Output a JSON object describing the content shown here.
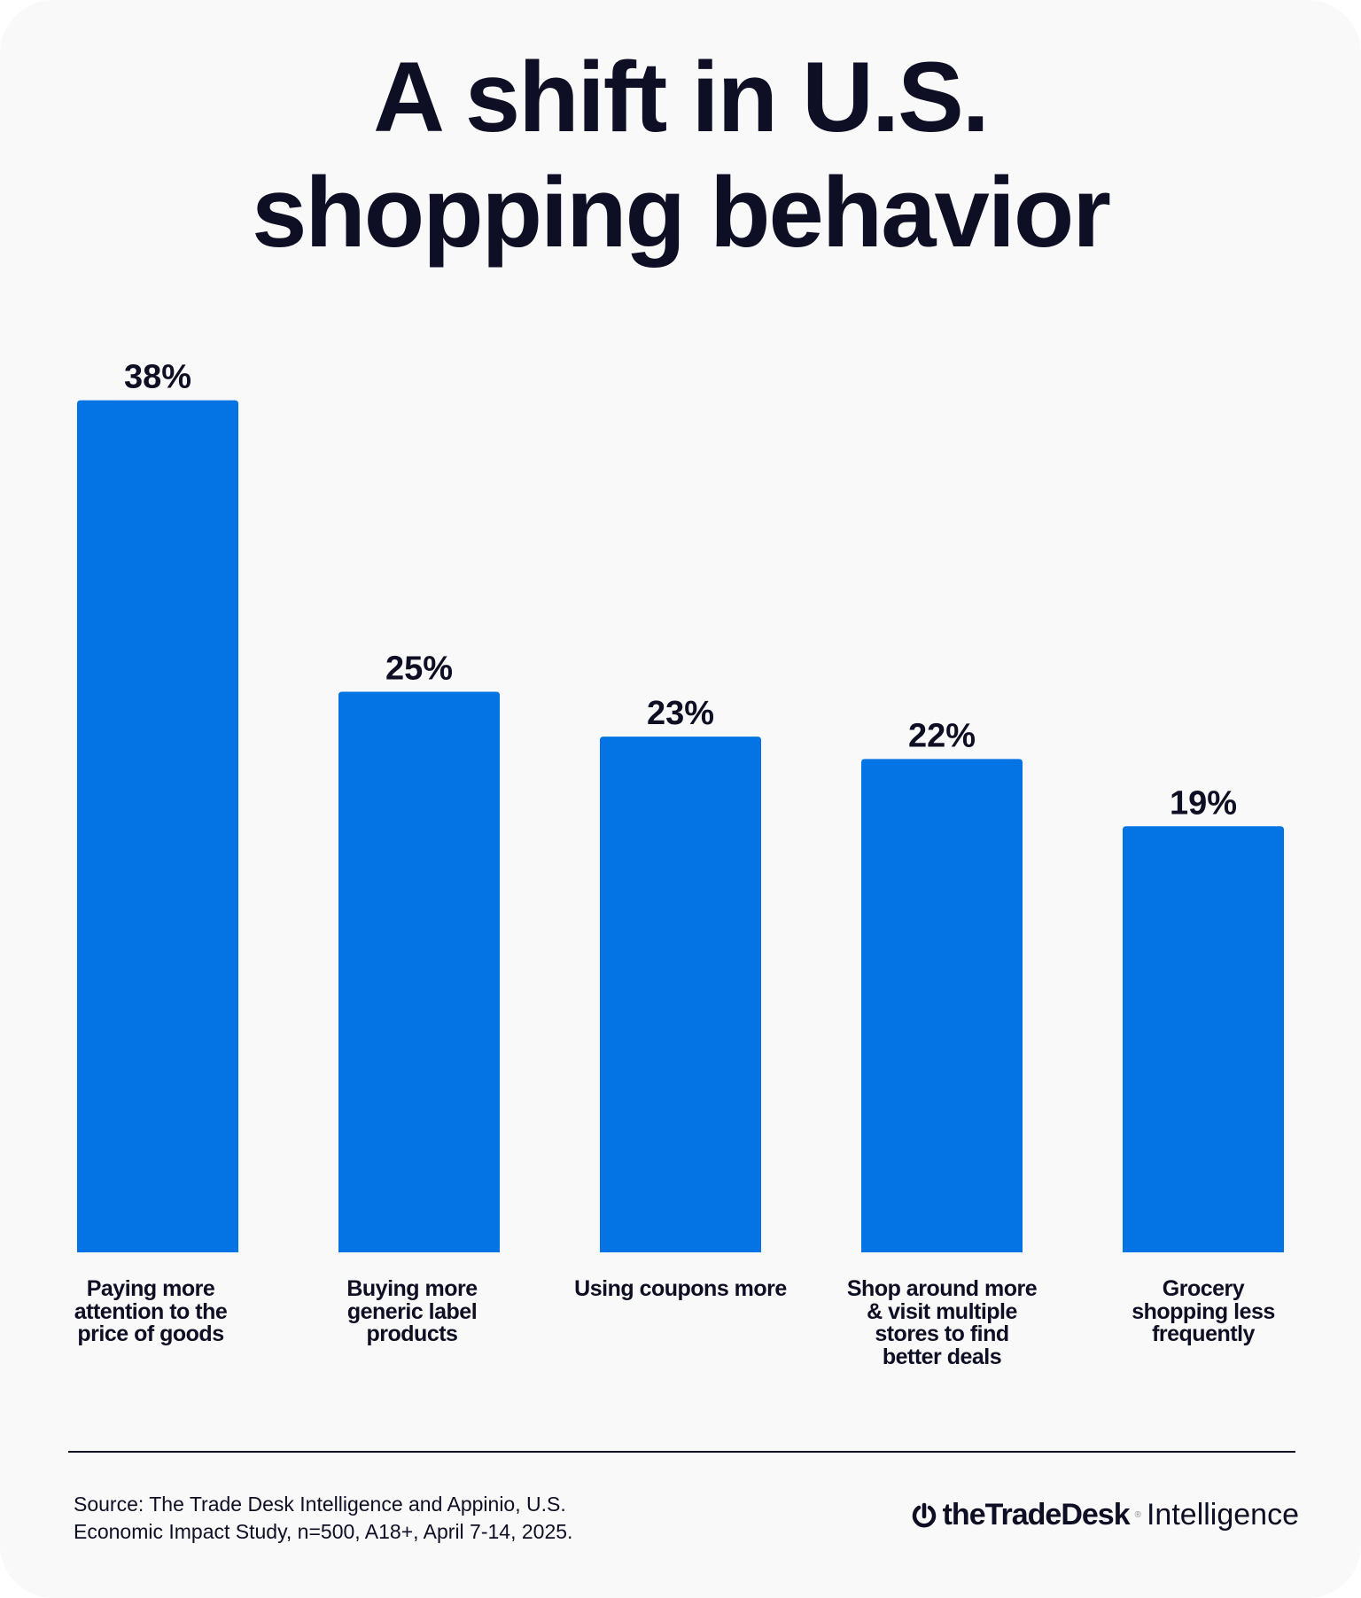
{
  "chart_data": {
    "type": "bar",
    "title": "A shift in U.S. shopping behavior",
    "title_lines": [
      "A shift in U.S.",
      "shopping behavior"
    ],
    "categories": [
      [
        "Paying more",
        "attention to the",
        "price of goods"
      ],
      [
        "Buying more",
        "generic label",
        "products"
      ],
      [
        "Using coupons more"
      ],
      [
        "Shop around more",
        "& visit multiple",
        "stores to find",
        "better deals"
      ],
      [
        "Grocery",
        "shopping less",
        "frequently"
      ]
    ],
    "values": [
      38,
      25,
      23,
      22,
      19
    ],
    "data_labels": [
      "38%",
      "25%",
      "23%",
      "22%",
      "19%"
    ],
    "unit": "%",
    "grid": false,
    "bar_color": "#0474e4"
  },
  "footer": {
    "source_lines": [
      "Source: The Trade Desk Intelligence and Appinio, U.S.",
      "Economic Impact Study, n=500, A18+, April 7-14, 2025."
    ],
    "logo_brand": "theTradeDesk",
    "logo_suffix": "Intelligence",
    "logo_icon": "trade-desk-power-icon"
  }
}
